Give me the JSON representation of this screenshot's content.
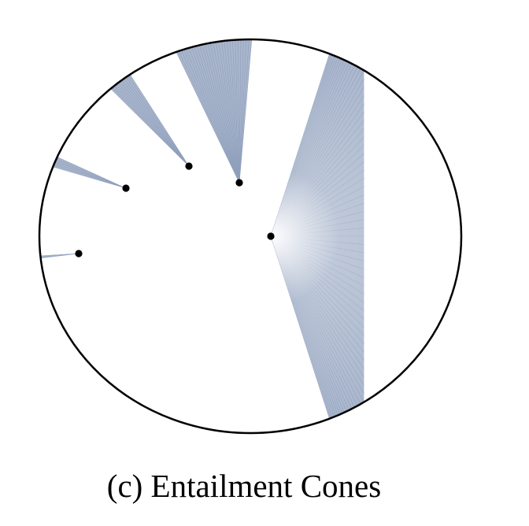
{
  "caption": "(c) Entailment Cones",
  "colors": {
    "cone_fill": "#a9b6cc",
    "cone_line": "#8f9fbc",
    "boundary": "#000000",
    "point": "#000000"
  },
  "cone_count": 5,
  "point_count": 5
}
